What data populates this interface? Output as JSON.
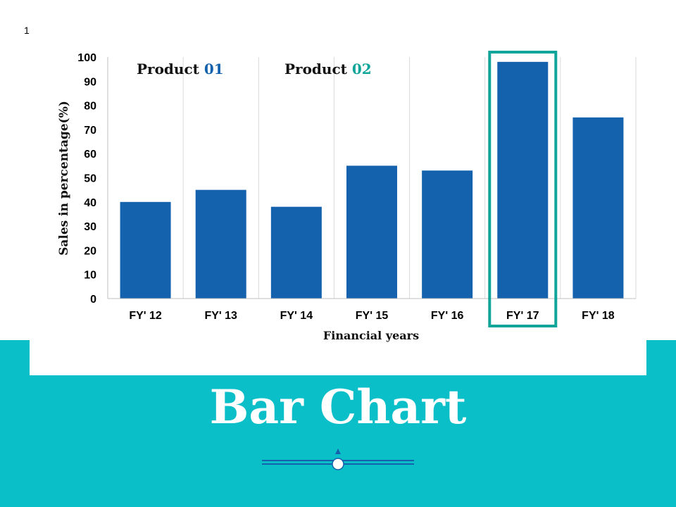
{
  "slide": {
    "number": "1",
    "title": "Bar Chart"
  },
  "colors": {
    "bar": "#1462ad",
    "highlight": "#10a59a",
    "teal_band": "#0bbfc9",
    "product_01_num": "#1462ad",
    "product_02_num": "#10a59a"
  },
  "chart_data": {
    "type": "bar",
    "categories": [
      "FY' 12",
      "FY' 13",
      "FY' 14",
      "FY' 15",
      "FY' 16",
      "FY' 17",
      "FY' 18"
    ],
    "values": [
      40,
      45,
      38,
      55,
      53,
      98,
      75
    ],
    "xlabel": "Financial years",
    "ylabel": "Sales in percentage(%)",
    "ylim": [
      0,
      100
    ],
    "yticks": [
      0,
      10,
      20,
      30,
      40,
      50,
      60,
      70,
      80,
      90,
      100
    ],
    "grid": "vertical",
    "highlighted_category": "FY' 17",
    "annotations": [
      {
        "text": "Product ",
        "number": "01"
      },
      {
        "text": "Product ",
        "number": "02"
      }
    ]
  }
}
